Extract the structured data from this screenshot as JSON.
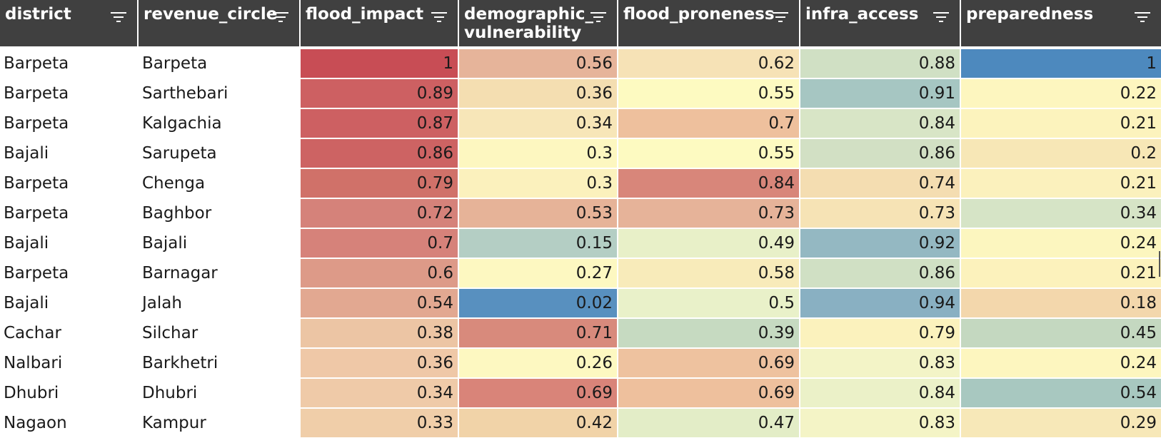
{
  "table": {
    "columns": [
      {
        "label": "district",
        "kind": "text"
      },
      {
        "label": "revenue_circle",
        "kind": "text"
      },
      {
        "label": "flood_impact",
        "kind": "num"
      },
      {
        "label": "demographic_\nvulnerability",
        "kind": "num"
      },
      {
        "label": "flood_proneness",
        "kind": "num"
      },
      {
        "label": "infra_access",
        "kind": "num"
      },
      {
        "label": "preparedness",
        "kind": "num"
      }
    ],
    "filter_icon": "filter-icon",
    "rows": [
      {
        "cells": [
          "Barpeta",
          "Barpeta",
          "1",
          "0.56",
          "0.62",
          "0.88",
          "1"
        ],
        "colors": [
          null,
          null,
          "#c84d55",
          "#e6b49a",
          "#f6e2b6",
          "#d0e0c4",
          "#4d89be"
        ]
      },
      {
        "cells": [
          "Barpeta",
          "Sarthebari",
          "0.89",
          "0.36",
          "0.55",
          "0.91",
          "0.22"
        ],
        "colors": [
          null,
          null,
          "#cd6062",
          "#f4deb1",
          "#fdfac1",
          "#a6c6c2",
          "#fdf6bf"
        ]
      },
      {
        "cells": [
          "Barpeta",
          "Kalgachia",
          "0.87",
          "0.34",
          "0.7",
          "0.84",
          "0.21"
        ],
        "colors": [
          null,
          null,
          "#cd6062",
          "#f7e6b8",
          "#eec09d",
          "#d8e5c6",
          "#fcf3bd"
        ]
      },
      {
        "cells": [
          "Bajali",
          "Sarupeta",
          "0.86",
          "0.3",
          "0.55",
          "0.86",
          "0.2"
        ],
        "colors": [
          null,
          null,
          "#cd6363",
          "#fdf7c0",
          "#fdfac1",
          "#d2e0c4",
          "#f7e7b6"
        ]
      },
      {
        "cells": [
          "Barpeta",
          "Chenga",
          "0.79",
          "0.3",
          "0.84",
          "0.74",
          "0.21"
        ],
        "colors": [
          null,
          null,
          "#d07169",
          "#fbf1bd",
          "#d8867a",
          "#f4ddb1",
          "#fbf1bd"
        ]
      },
      {
        "cells": [
          "Barpeta",
          "Baghbor",
          "0.72",
          "0.53",
          "0.73",
          "0.73",
          "0.34"
        ],
        "colors": [
          null,
          null,
          "#d5827a",
          "#e6b398",
          "#e6b399",
          "#f6e3b5",
          "#d6e4c6"
        ]
      },
      {
        "cells": [
          "Bajali",
          "Bajali",
          "0.7",
          "0.15",
          "0.49",
          "0.92",
          "0.24"
        ],
        "colors": [
          null,
          null,
          "#d6827a",
          "#b4cec4",
          "#e8f0c8",
          "#94b8c2",
          "#fcf6bf"
        ]
      },
      {
        "cells": [
          "Barpeta",
          "Barnagar",
          "0.6",
          "0.27",
          "0.58",
          "0.86",
          "0.21"
        ],
        "colors": [
          null,
          null,
          "#dd9a88",
          "#fdf8c1",
          "#f8ebba",
          "#d0e0c4",
          "#fcf2bc"
        ]
      },
      {
        "cells": [
          "Bajali",
          "Jalah",
          "0.54",
          "0.02",
          "0.5",
          "0.94",
          "0.18"
        ],
        "colors": [
          null,
          null,
          "#e2a891",
          "#5890bf",
          "#e9f1c9",
          "#89b0c2",
          "#f3d7ac"
        ]
      },
      {
        "cells": [
          "Cachar",
          "Silchar",
          "0.38",
          "0.71",
          "0.39",
          "0.79",
          "0.45"
        ],
        "colors": [
          null,
          null,
          "#ecc5a4",
          "#d88a7c",
          "#c6dac1",
          "#fbf2bd",
          "#c4d8c0"
        ]
      },
      {
        "cells": [
          "Nalbari",
          "Barkhetri",
          "0.36",
          "0.26",
          "0.69",
          "0.83",
          "0.24"
        ],
        "colors": [
          null,
          null,
          "#efc8a7",
          "#fdf8c1",
          "#eec29f",
          "#f3f4c7",
          "#fdf6bf"
        ]
      },
      {
        "cells": [
          "Dhubri",
          "Dhubri",
          "0.34",
          "0.69",
          "0.69",
          "0.84",
          "0.54"
        ],
        "colors": [
          null,
          null,
          "#efcaa8",
          "#d98479",
          "#eec09d",
          "#ebf1c8",
          "#a8c8c0"
        ]
      },
      {
        "cells": [
          "Nagaon",
          "Kampur",
          "0.33",
          "0.42",
          "0.47",
          "0.83",
          "0.29"
        ],
        "colors": [
          null,
          null,
          "#f0cea9",
          "#f1d3a8",
          "#e3edc7",
          "#f4f4c6",
          "#f7e8b8"
        ]
      }
    ]
  }
}
